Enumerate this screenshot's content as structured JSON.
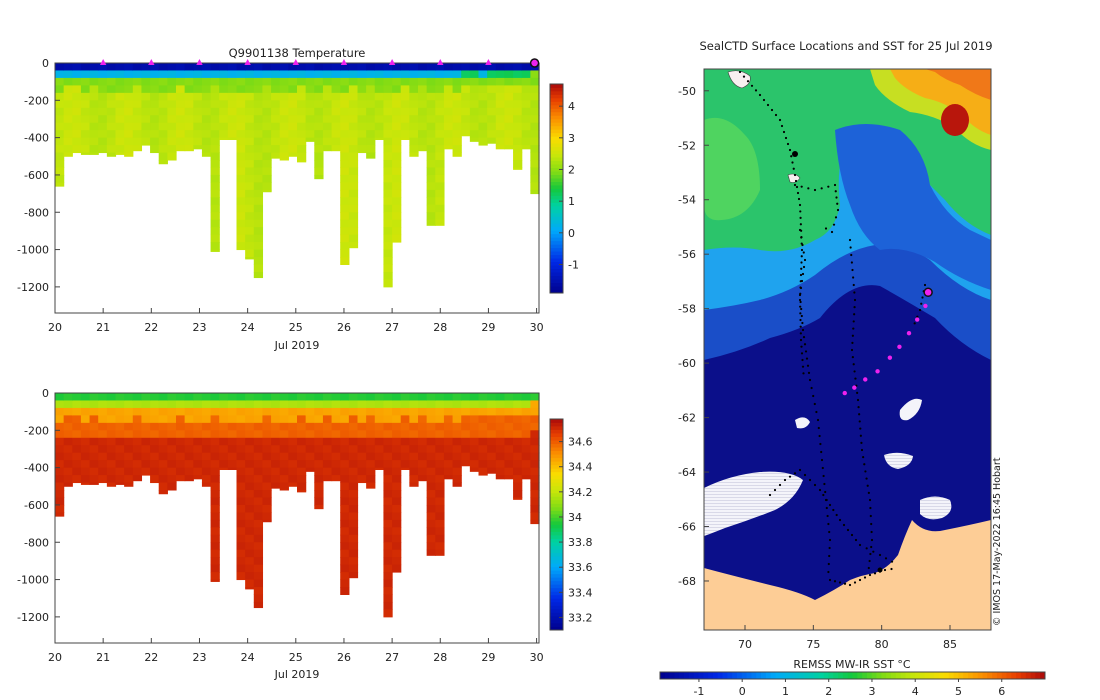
{
  "chart_data": [
    {
      "type": "heatmap",
      "title": "Q9901138  Temperature",
      "xlabel": "Jul 2019",
      "ylabel": "",
      "x_ticks": [
        "20",
        "21",
        "22",
        "23",
        "24",
        "25",
        "26",
        "27",
        "28",
        "29",
        "30"
      ],
      "x_range": [
        20,
        30.05
      ],
      "y_ticks": [
        "0",
        "-200",
        "-400",
        "-600",
        "-800",
        "-1000",
        "-1200"
      ],
      "y_range": [
        0,
        -1340
      ],
      "colorbar": {
        "range": [
          -1.9,
          4.7
        ],
        "ticks": [
          "-1",
          "0",
          "1",
          "2",
          "3",
          "4"
        ]
      },
      "surface_markers_days": [
        21,
        22,
        23,
        24,
        25,
        26,
        27,
        28,
        29,
        30
      ],
      "profile_max_depths": [
        660,
        500,
        480,
        490,
        490,
        480,
        500,
        490,
        500,
        470,
        440,
        480,
        540,
        520,
        470,
        470,
        460,
        500,
        1010,
        410,
        410,
        1000,
        1050,
        1150,
        690,
        510,
        520,
        500,
        530,
        420,
        620,
        470,
        470,
        1080,
        990,
        480,
        510,
        410,
        1200,
        960,
        410,
        500,
        470,
        870,
        870,
        460,
        500,
        390,
        420,
        440,
        430,
        460,
        460,
        570,
        460,
        700
      ],
      "profile_surface_cold_depths": [
        100,
        80,
        80,
        85,
        80,
        85,
        90,
        90,
        85,
        80,
        90,
        85,
        85,
        90,
        80,
        85,
        85,
        90,
        80,
        90,
        90,
        85,
        90,
        85,
        80,
        85,
        90,
        85,
        80,
        90,
        85,
        80,
        85,
        85,
        80,
        90,
        80,
        85,
        90,
        85,
        80,
        85,
        80,
        85,
        90,
        80,
        85,
        75,
        70,
        80,
        75,
        70,
        65,
        70,
        75,
        60
      ]
    },
    {
      "type": "heatmap",
      "title": "",
      "xlabel": "Jul 2019",
      "ylabel": "",
      "x_ticks": [
        "20",
        "21",
        "22",
        "23",
        "24",
        "25",
        "26",
        "27",
        "28",
        "29",
        "30"
      ],
      "x_range": [
        20,
        30.05
      ],
      "y_ticks": [
        "0",
        "-200",
        "-400",
        "-600",
        "-800",
        "-1000",
        "-1200"
      ],
      "y_range": [
        0,
        -1340
      ],
      "colorbar": {
        "range": [
          33.1,
          34.78
        ],
        "ticks": [
          "33.2",
          "33.4",
          "33.6",
          "33.8",
          "34",
          "34.2",
          "34.4",
          "34.6"
        ]
      }
    },
    {
      "type": "map",
      "title": "SealCTD Surface Locations and SST for 25 Jul 2019",
      "x_ticks": [
        "70",
        "75",
        "80",
        "85"
      ],
      "x_range": [
        67,
        88
      ],
      "y_ticks": [
        "-50",
        "-52",
        "-54",
        "-56",
        "-58",
        "-60",
        "-62",
        "-64",
        "-66",
        "-68"
      ],
      "y_range": [
        -49.2,
        -69.8
      ],
      "colorbar": {
        "label": "REMSS MW-IR SST °C",
        "range": [
          -1.9,
          7.0
        ],
        "ticks": [
          "-1",
          "0",
          "1",
          "2",
          "3",
          "4",
          "5",
          "6"
        ]
      },
      "recent_track": [
        [
          83.4,
          -57.4
        ],
        [
          83.2,
          -57.9
        ],
        [
          82.6,
          -58.4
        ],
        [
          82.0,
          -58.9
        ],
        [
          81.3,
          -59.4
        ],
        [
          80.6,
          -59.8
        ],
        [
          79.7,
          -60.3
        ],
        [
          78.8,
          -60.6
        ],
        [
          78.0,
          -60.9
        ],
        [
          77.3,
          -61.1
        ]
      ],
      "current_position": [
        83.4,
        -57.4
      ],
      "credit": "© IMOS 17-May-2022 16:45 Hobart"
    }
  ],
  "colors": {
    "land": "#fdcd96",
    "ice": "#eeeef6",
    "marker": "#ee22ee",
    "deep_blue": "#0b0f8a"
  }
}
